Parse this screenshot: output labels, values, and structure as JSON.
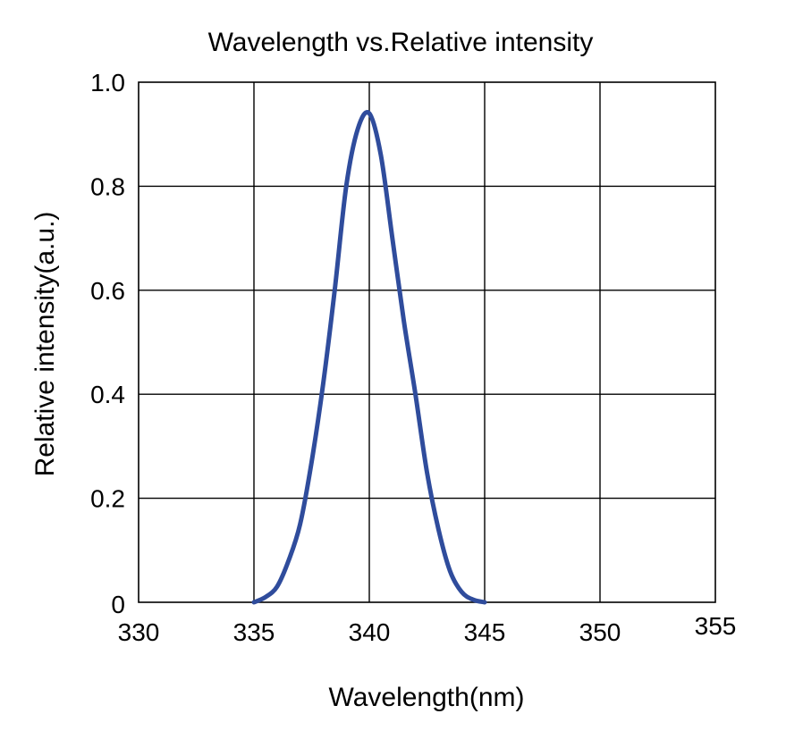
{
  "chart_data": {
    "type": "line",
    "title": "Wavelength vs.Relative intensity",
    "xlabel": "Wavelength(nm)",
    "ylabel": "Relative intensity(a.u.)",
    "xlim": [
      330,
      355
    ],
    "ylim": [
      0,
      1.0
    ],
    "x_ticks": [
      330,
      335,
      340,
      345,
      350,
      355
    ],
    "x_tick_labels": [
      "330",
      "335",
      "340",
      "345",
      "350",
      "355"
    ],
    "y_ticks": [
      0,
      0.2,
      0.4,
      0.6,
      0.8,
      1.0
    ],
    "y_tick_labels": [
      "0",
      "0.2",
      "0.4",
      "0.6",
      "0.8",
      "1.0"
    ],
    "grid": true,
    "series_color": "#2F4C9C",
    "series": [
      {
        "x": [
          335,
          335.5,
          336,
          336.5,
          337,
          337.5,
          338,
          338.5,
          339,
          339.5,
          340,
          340.5,
          341,
          341.5,
          342,
          342.5,
          343,
          343.5,
          344,
          344.5,
          345
        ],
        "y": [
          0.0,
          0.01,
          0.03,
          0.08,
          0.15,
          0.27,
          0.42,
          0.6,
          0.8,
          0.91,
          0.94,
          0.86,
          0.7,
          0.54,
          0.4,
          0.25,
          0.14,
          0.06,
          0.02,
          0.005,
          0.0
        ]
      }
    ]
  }
}
